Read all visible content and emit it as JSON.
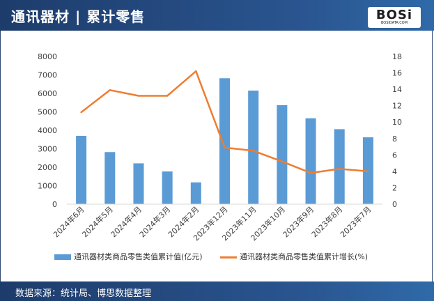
{
  "header": {
    "title": "通讯器材 | 累计零售"
  },
  "logo": {
    "text": "BOSi",
    "subtext": "BOSIDATA.COM"
  },
  "footer": {
    "source": "数据来源：统计局、博思数据整理"
  },
  "colors": {
    "bar": "#5b9bd5",
    "line": "#ed7d31"
  },
  "chart_data": {
    "type": "bar",
    "categories": [
      "2024年6月",
      "2024年5月",
      "2024年4月",
      "2024年3月",
      "2024年2月",
      "2023年12月",
      "2023年11月",
      "2023年10月",
      "2023年9月",
      "2023年8月",
      "2023年7月"
    ],
    "series": [
      {
        "name": "通讯器材类商品零售类值累计值(亿元)",
        "type": "bar",
        "axis": "left",
        "values": [
          3700,
          2820,
          2210,
          1770,
          1180,
          6820,
          6150,
          5360,
          4650,
          4060,
          3620
        ]
      },
      {
        "name": "通讯器材类商品零售类值累计增长(%)",
        "type": "line",
        "axis": "right",
        "values": [
          11.2,
          13.9,
          13.2,
          13.2,
          16.2,
          6.9,
          6.5,
          5.2,
          3.8,
          4.3,
          4.0
        ]
      }
    ],
    "y_left": {
      "min": 0,
      "max": 8000,
      "ticks": [
        0,
        1000,
        2000,
        3000,
        4000,
        5000,
        6000,
        7000,
        8000
      ]
    },
    "y_right": {
      "min": 0,
      "max": 18,
      "ticks": [
        0,
        2,
        4,
        6,
        8,
        10,
        12,
        14,
        16,
        18
      ]
    },
    "grid": false,
    "legend_position": "bottom"
  }
}
